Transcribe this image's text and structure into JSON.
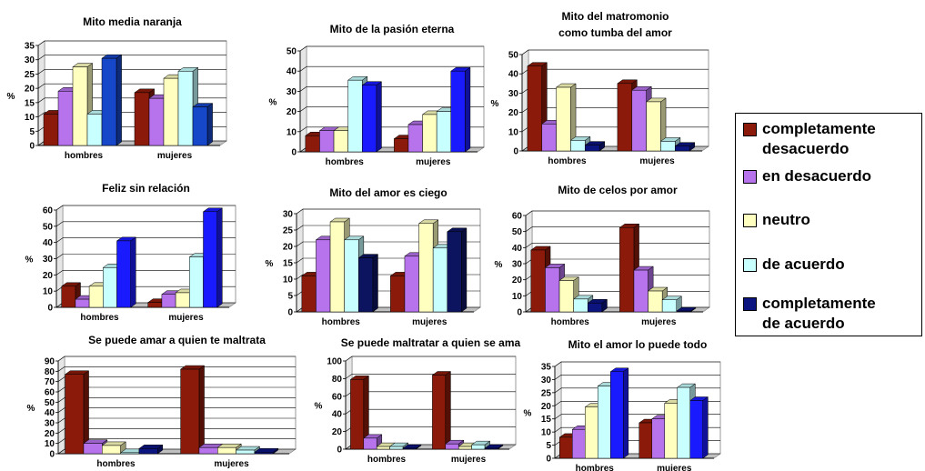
{
  "legend": {
    "items": [
      {
        "label_line1": "completamente",
        "label_line2": "desacuerdo",
        "color": "#8b1a0a"
      },
      {
        "label_line1": "en desacuerdo",
        "label_line2": "",
        "color": "#b673ec"
      },
      {
        "label_line1": "neutro",
        "label_line2": "",
        "color": "#ffffc0"
      },
      {
        "label_line1": "de acuerdo",
        "label_line2": "",
        "color": "#c8ffff"
      },
      {
        "label_line1": "completamente",
        "label_line2": "de acuerdo",
        "color": "#0c1480"
      }
    ]
  },
  "chart_data": [
    {
      "type": "bar",
      "title": [
        "Mito media naranja"
      ],
      "ylabel": "%",
      "categories": [
        "hombres",
        "mujeres"
      ],
      "ylim": [
        0,
        35
      ],
      "ticks": [
        0,
        5,
        10,
        15,
        20,
        25,
        30,
        35
      ],
      "series": [
        {
          "values": [
            11,
            18.5
          ]
        },
        {
          "values": [
            19,
            16.5
          ]
        },
        {
          "values": [
            27.5,
            23.5
          ]
        },
        {
          "values": [
            11,
            26
          ]
        },
        {
          "values": [
            30.5,
            13.5
          ]
        }
      ],
      "colors": [
        "#8b1a0a",
        "#b673ec",
        "#ffffc0",
        "#c8ffff",
        "#1647c8"
      ]
    },
    {
      "type": "bar",
      "title": [
        "Mito de la pasión eterna"
      ],
      "ylabel": "%",
      "categories": [
        "hombres",
        "mujeres"
      ],
      "ylim": [
        0,
        50
      ],
      "ticks": [
        0,
        10,
        20,
        30,
        40,
        50
      ],
      "series": [
        {
          "values": [
            8,
            6.5
          ]
        },
        {
          "values": [
            10.5,
            13.5
          ]
        },
        {
          "values": [
            10.5,
            18.5
          ]
        },
        {
          "values": [
            35.5,
            20
          ]
        },
        {
          "values": [
            33,
            40
          ]
        }
      ],
      "colors": [
        "#8b1a0a",
        "#b673ec",
        "#ffffc0",
        "#c8ffff",
        "#1a1aff"
      ]
    },
    {
      "type": "bar",
      "title": [
        "Mito del matromonio",
        "como tumba del amor"
      ],
      "ylabel": "%",
      "categories": [
        "hombres",
        "mujeres"
      ],
      "ylim": [
        0,
        50
      ],
      "ticks": [
        0,
        10,
        20,
        30,
        40,
        50
      ],
      "series": [
        {
          "values": [
            44,
            35
          ]
        },
        {
          "values": [
            14,
            31.5
          ]
        },
        {
          "values": [
            33,
            25.5
          ]
        },
        {
          "values": [
            5.5,
            5
          ]
        },
        {
          "values": [
            3,
            2.5
          ]
        }
      ],
      "colors": [
        "#8b1a0a",
        "#b673ec",
        "#ffffc0",
        "#c8ffff",
        "#0c1480"
      ]
    },
    {
      "type": "bar",
      "title": [
        "Feliz sin relación"
      ],
      "ylabel": "%",
      "categories": [
        "hombres",
        "mujeres"
      ],
      "ylim": [
        0,
        60
      ],
      "ticks": [
        0,
        10,
        20,
        30,
        40,
        50,
        60
      ],
      "series": [
        {
          "values": [
            13,
            3
          ]
        },
        {
          "values": [
            5,
            8
          ]
        },
        {
          "values": [
            13,
            9
          ]
        },
        {
          "values": [
            24.5,
            31
          ]
        },
        {
          "values": [
            41,
            59
          ]
        }
      ],
      "colors": [
        "#8b1a0a",
        "#b673ec",
        "#ffffc0",
        "#c8ffff",
        "#1a1aff"
      ]
    },
    {
      "type": "bar",
      "title": [
        "Mito del amor es ciego"
      ],
      "ylabel": "%",
      "categories": [
        "hombres",
        "mujeres"
      ],
      "ylim": [
        0,
        30
      ],
      "ticks": [
        0,
        5,
        10,
        15,
        20,
        25,
        30
      ],
      "series": [
        {
          "values": [
            11,
            11
          ]
        },
        {
          "values": [
            22,
            17
          ]
        },
        {
          "values": [
            27.5,
            27
          ]
        },
        {
          "values": [
            22,
            19.5
          ]
        },
        {
          "values": [
            16.5,
            24.5
          ]
        }
      ],
      "colors": [
        "#8b1a0a",
        "#b673ec",
        "#ffffc0",
        "#c8ffff",
        "#0c1460"
      ]
    },
    {
      "type": "bar",
      "title": [
        "Mito de celos por amor"
      ],
      "ylabel": "%",
      "categories": [
        "hombres",
        "mujeres"
      ],
      "ylim": [
        0,
        60
      ],
      "ticks": [
        0,
        10,
        20,
        30,
        40,
        50,
        60
      ],
      "series": [
        {
          "values": [
            38.5,
            52.5
          ]
        },
        {
          "values": [
            27.5,
            26
          ]
        },
        {
          "values": [
            19.5,
            13
          ]
        },
        {
          "values": [
            8,
            7.5
          ]
        },
        {
          "values": [
            5.5,
            0.5
          ]
        }
      ],
      "colors": [
        "#8b1a0a",
        "#b673ec",
        "#ffffc0",
        "#c8ffff",
        "#0c1480"
      ]
    },
    {
      "type": "bar",
      "title": [
        "Se puede amar a quien te maltrata"
      ],
      "ylabel": "%",
      "categories": [
        "hombres",
        "mujeres"
      ],
      "ylim": [
        0,
        90
      ],
      "ticks": [
        0,
        10,
        20,
        30,
        40,
        50,
        60,
        70,
        80,
        90
      ],
      "series": [
        {
          "values": [
            77,
            82
          ]
        },
        {
          "values": [
            10,
            6
          ]
        },
        {
          "values": [
            8,
            6
          ]
        },
        {
          "values": [
            1,
            3.5
          ]
        },
        {
          "values": [
            5,
            1.5
          ]
        }
      ],
      "colors": [
        "#8b1a0a",
        "#b673ec",
        "#ffffc0",
        "#c8ffff",
        "#0c1480"
      ]
    },
    {
      "type": "bar",
      "title": [
        "Se puede maltratar a quien se ama"
      ],
      "ylabel": "%",
      "categories": [
        "hombres",
        "mujeres"
      ],
      "ylim": [
        0,
        100
      ],
      "ticks": [
        0,
        20,
        40,
        60,
        80,
        100
      ],
      "series": [
        {
          "values": [
            79,
            84
          ]
        },
        {
          "values": [
            12.5,
            6
          ]
        },
        {
          "values": [
            3,
            3
          ]
        },
        {
          "values": [
            3,
            5
          ]
        },
        {
          "values": [
            1,
            1
          ]
        }
      ],
      "colors": [
        "#8b1a0a",
        "#b673ec",
        "#ffffc0",
        "#c8ffff",
        "#0c1480"
      ]
    },
    {
      "type": "bar",
      "title": [
        "Mito el amor lo puede todo"
      ],
      "ylabel": "%",
      "categories": [
        "hombres",
        "mujeres"
      ],
      "ylim": [
        0,
        35
      ],
      "ticks": [
        0,
        5,
        10,
        15,
        20,
        25,
        30,
        35
      ],
      "series": [
        {
          "values": [
            8,
            13.5
          ]
        },
        {
          "values": [
            11,
            15
          ]
        },
        {
          "values": [
            19.5,
            21
          ]
        },
        {
          "values": [
            27.5,
            27
          ]
        },
        {
          "values": [
            33,
            22
          ]
        }
      ],
      "colors": [
        "#8b1a0a",
        "#b673ec",
        "#ffffc0",
        "#c8ffff",
        "#1a1aff"
      ]
    }
  ]
}
